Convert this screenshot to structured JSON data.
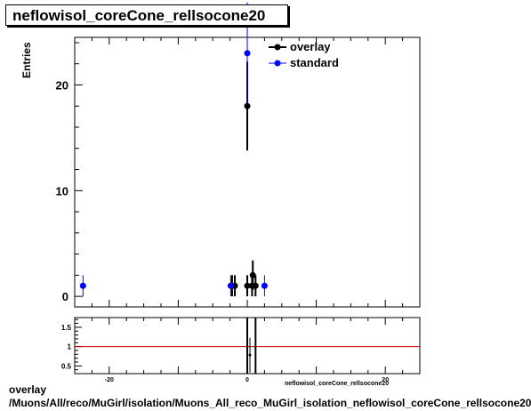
{
  "title": "neflowisol_coreCone_rellsocone20",
  "ylabel": "Entries",
  "xlabel": "neflowisol_coreCone_rellsocone20",
  "footer_line1": "overlay",
  "footer_line2": "/Muons/All/reco/MuGirl/isolation/Muons_All_reco_MuGirl_isolation_neflowisol_coreCone_rellsocone20",
  "colors": {
    "overlay": "#000000",
    "standard": "#0000ff",
    "ratio_line": "#cc0000"
  },
  "chart_data": {
    "type": "scatter",
    "xlim": [
      -25,
      25
    ],
    "ylim": [
      -1,
      24.5
    ],
    "x_ticks": [
      -20,
      0,
      20
    ],
    "y_ticks": [
      0,
      10,
      20
    ],
    "legend": "top-right",
    "series": [
      {
        "name": "overlay",
        "points": [
          {
            "x": -2.2,
            "y": 1,
            "err": 1
          },
          {
            "x": -1.8,
            "y": 1,
            "err": 1
          },
          {
            "x": 0.0,
            "y": 18,
            "err": 4.2
          },
          {
            "x": 0.0,
            "y": 1,
            "err": 1
          },
          {
            "x": 0.7,
            "y": 1,
            "err": 1
          },
          {
            "x": 0.8,
            "y": 2,
            "err": 1.4
          },
          {
            "x": 1.2,
            "y": 1,
            "err": 1
          }
        ]
      },
      {
        "name": "standard",
        "points": [
          {
            "x": -23.8,
            "y": 1,
            "err": 1
          },
          {
            "x": -2.4,
            "y": 1,
            "err": 1
          },
          {
            "x": 0.0,
            "y": 23,
            "err": 4.8
          },
          {
            "x": 2.5,
            "y": 1,
            "err": 1
          }
        ]
      }
    ],
    "ratio": {
      "ylim": [
        0.3,
        1.75
      ],
      "y_ticks": [
        0.5,
        1,
        1.5
      ],
      "reference": 1,
      "points": [
        {
          "x": 0.0,
          "y": 0.78,
          "err": 0.45
        }
      ],
      "bands": [
        {
          "x": 0.0
        },
        {
          "x": 1.2
        }
      ]
    }
  }
}
